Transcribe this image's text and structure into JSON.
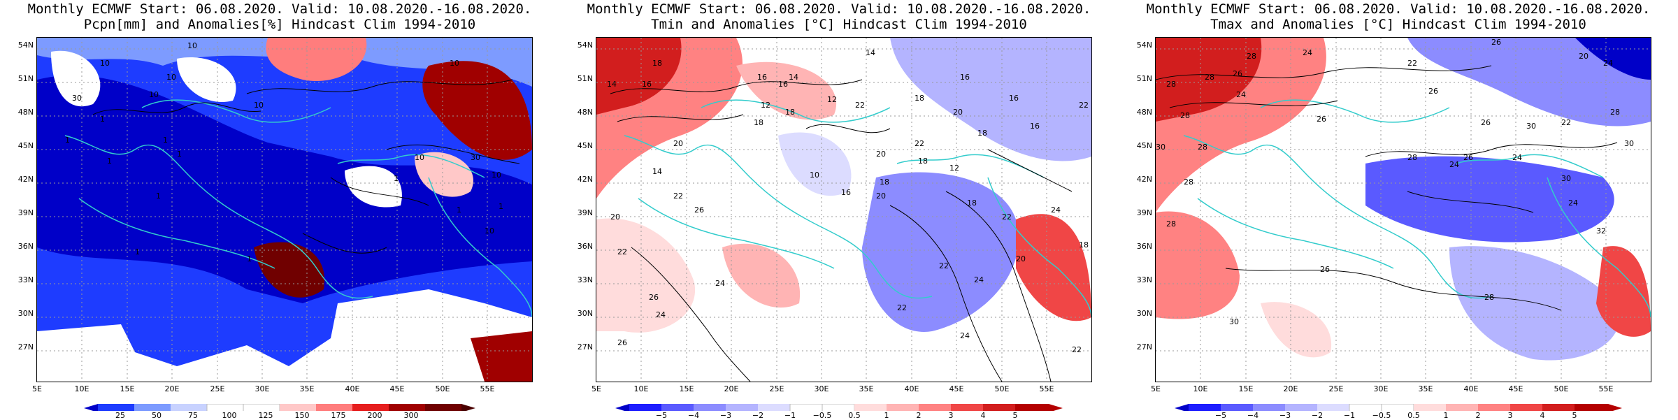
{
  "panels": [
    {
      "id": "precip",
      "title1": "Monthly ECMWF Start: 06.08.2020. Valid: 10.08.2020.-16.08.2020.",
      "title2": "Pcpn[mm] and Anomalies[%] Hindcast Clim 1994-2010",
      "colorbar": {
        "labels": [
          "25",
          "50",
          "75",
          "100",
          "125",
          "150",
          "175",
          "200",
          "300"
        ],
        "colors": [
          "#0000c8",
          "#1e3cff",
          "#7d9bff",
          "#c8d2ff",
          "#ffffff",
          "#ffc8c8",
          "#ff7d7d",
          "#e61e1e",
          "#a00000",
          "#700000"
        ]
      },
      "contour_labels": [
        "10",
        "10",
        "10",
        "10",
        "10",
        "30",
        "10",
        "1",
        "1",
        "1",
        "1",
        "1",
        "10",
        "30",
        "1",
        "10",
        "1",
        "1",
        "1",
        "10",
        "1",
        "1"
      ]
    },
    {
      "id": "tmin",
      "title1": "Monthly ECMWF Start: 06.08.2020. Valid: 10.08.2020.-16.08.2020.",
      "title2": "Tmin and Anomalies [°C] Hindcast Clim 1994-2010",
      "colorbar": {
        "labels": [
          "−5",
          "−4",
          "−3",
          "−2",
          "−1",
          "−0.5",
          "0.5",
          "1",
          "2",
          "3",
          "4",
          "5"
        ],
        "colors": [
          "#0000c8",
          "#1e1eff",
          "#5a5aff",
          "#8c8cff",
          "#b4b4ff",
          "#dcdcff",
          "#ffffff",
          "#ffdcdc",
          "#ffb4b4",
          "#ff8282",
          "#f04646",
          "#d21e1e",
          "#b40000"
        ]
      },
      "contour_labels": [
        "14",
        "18",
        "16",
        "14",
        "16",
        "12",
        "14",
        "16",
        "16",
        "18",
        "16",
        "12",
        "22",
        "18",
        "20",
        "22",
        "18",
        "16",
        "18",
        "22",
        "20",
        "20",
        "18",
        "12",
        "10",
        "14",
        "18",
        "16",
        "20",
        "18",
        "24",
        "22",
        "20",
        "26",
        "22",
        "26",
        "24",
        "22",
        "26",
        "20",
        "22",
        "24",
        "22",
        "24",
        "24",
        "22",
        "18"
      ]
    },
    {
      "id": "tmax",
      "title1": "Monthly ECMWF Start: 06.08.2020. Valid: 10.08.2020.-16.08.2020.",
      "title2": "Tmax and Anomalies [°C] Hindcast Clim 1994-2010",
      "colorbar": {
        "labels": [
          "−5",
          "−4",
          "−3",
          "−2",
          "−1",
          "−0.5",
          "0.5",
          "1",
          "2",
          "3",
          "4",
          "5"
        ],
        "colors": [
          "#0000c8",
          "#1e1eff",
          "#5a5aff",
          "#8c8cff",
          "#b4b4ff",
          "#dcdcff",
          "#ffffff",
          "#ffdcdc",
          "#ffb4b4",
          "#ff8282",
          "#f04646",
          "#d21e1e",
          "#b40000"
        ]
      },
      "contour_labels": [
        "26",
        "28",
        "24",
        "28",
        "26",
        "22",
        "20",
        "24",
        "26",
        "28",
        "24",
        "26",
        "30",
        "28",
        "28",
        "26",
        "30",
        "22",
        "30",
        "26",
        "24",
        "28",
        "28",
        "24",
        "30",
        "28",
        "28",
        "26",
        "30",
        "32",
        "24",
        "28"
      ]
    }
  ],
  "axes": {
    "lat_labels": [
      "54N",
      "51N",
      "48N",
      "45N",
      "42N",
      "39N",
      "36N",
      "33N",
      "30N",
      "27N"
    ],
    "lon_labels": [
      "5E",
      "10E",
      "15E",
      "20E",
      "25E",
      "30E",
      "35E",
      "40E",
      "45E",
      "50E",
      "55E"
    ]
  },
  "colors": {
    "coastline": "#33cccc",
    "contour": "#000000",
    "gridline": "#999999"
  }
}
